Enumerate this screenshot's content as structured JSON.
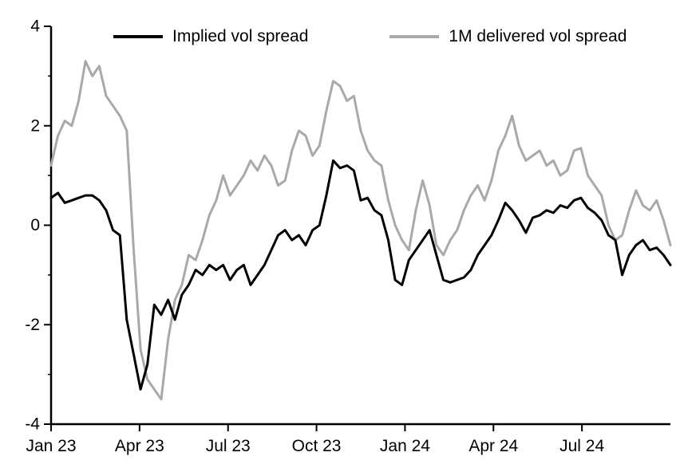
{
  "chart_data": {
    "type": "line",
    "title": "",
    "xlabel": "",
    "ylabel": "",
    "grid": false,
    "legend_position": "top-inside",
    "background": "#ffffff",
    "axis_color": "#000000",
    "xlim": [
      0,
      21
    ],
    "ylim": [
      -4,
      4
    ],
    "x_unit": "months since Jan 2023 (weekly points)",
    "x_start": 0,
    "x_step": 0.23333,
    "xticks": {
      "positions": [
        0,
        3,
        6,
        9,
        12,
        15,
        18
      ],
      "labels": [
        "Jan 23",
        "Apr 23",
        "Jul 23",
        "Oct 23",
        "Jan 24",
        "Apr 24",
        "Jul 24"
      ]
    },
    "yticks": {
      "positions": [
        -4,
        -2,
        0,
        2,
        4
      ],
      "labels": [
        "-4",
        "-2",
        "0",
        "2",
        "4"
      ],
      "minor": [
        -3,
        -1,
        1,
        3
      ]
    },
    "series": [
      {
        "name": "Implied vol spread",
        "color": "#000000",
        "width": 3,
        "values": [
          0.55,
          0.65,
          0.45,
          0.5,
          0.55,
          0.6,
          0.6,
          0.5,
          0.3,
          -0.1,
          -0.2,
          -1.9,
          -2.6,
          -3.3,
          -2.8,
          -1.6,
          -1.8,
          -1.5,
          -1.9,
          -1.4,
          -1.2,
          -0.9,
          -1.0,
          -0.8,
          -0.9,
          -0.8,
          -1.1,
          -0.9,
          -0.8,
          -1.2,
          -1.0,
          -0.8,
          -0.5,
          -0.2,
          -0.1,
          -0.3,
          -0.2,
          -0.4,
          -0.1,
          0.0,
          0.6,
          1.3,
          1.15,
          1.2,
          1.1,
          0.5,
          0.55,
          0.3,
          0.2,
          -0.3,
          -1.1,
          -1.2,
          -0.7,
          -0.5,
          -0.3,
          -0.1,
          -0.6,
          -1.1,
          -1.15,
          -1.1,
          -1.05,
          -0.9,
          -0.6,
          -0.4,
          -0.2,
          0.1,
          0.45,
          0.3,
          0.1,
          -0.15,
          0.15,
          0.2,
          0.3,
          0.25,
          0.4,
          0.35,
          0.5,
          0.55,
          0.35,
          0.25,
          0.1,
          -0.2,
          -0.3,
          -1.0,
          -0.6,
          -0.4,
          -0.3,
          -0.5,
          -0.45,
          -0.6,
          -0.8
        ]
      },
      {
        "name": "1M delivered vol spread",
        "color": "#a9a9a9",
        "width": 3,
        "values": [
          1.2,
          1.8,
          2.1,
          2.0,
          2.5,
          3.3,
          3.0,
          3.2,
          2.6,
          2.4,
          2.2,
          1.9,
          -0.5,
          -2.5,
          -3.1,
          -3.3,
          -3.5,
          -2.3,
          -1.5,
          -1.2,
          -0.6,
          -0.7,
          -0.3,
          0.2,
          0.5,
          1.0,
          0.6,
          0.8,
          1.0,
          1.3,
          1.1,
          1.4,
          1.2,
          0.8,
          0.9,
          1.5,
          1.9,
          1.8,
          1.4,
          1.6,
          2.3,
          2.9,
          2.8,
          2.5,
          2.6,
          1.9,
          1.5,
          1.3,
          1.2,
          0.5,
          0.0,
          -0.3,
          -0.5,
          0.3,
          0.9,
          0.4,
          -0.4,
          -0.6,
          -0.3,
          -0.1,
          0.3,
          0.6,
          0.8,
          0.5,
          0.9,
          1.5,
          1.8,
          2.2,
          1.6,
          1.3,
          1.4,
          1.5,
          1.2,
          1.3,
          1.0,
          1.1,
          1.5,
          1.55,
          1.0,
          0.8,
          0.6,
          0.0,
          -0.3,
          -0.2,
          0.3,
          0.7,
          0.4,
          0.3,
          0.5,
          0.1,
          -0.4
        ]
      }
    ]
  }
}
